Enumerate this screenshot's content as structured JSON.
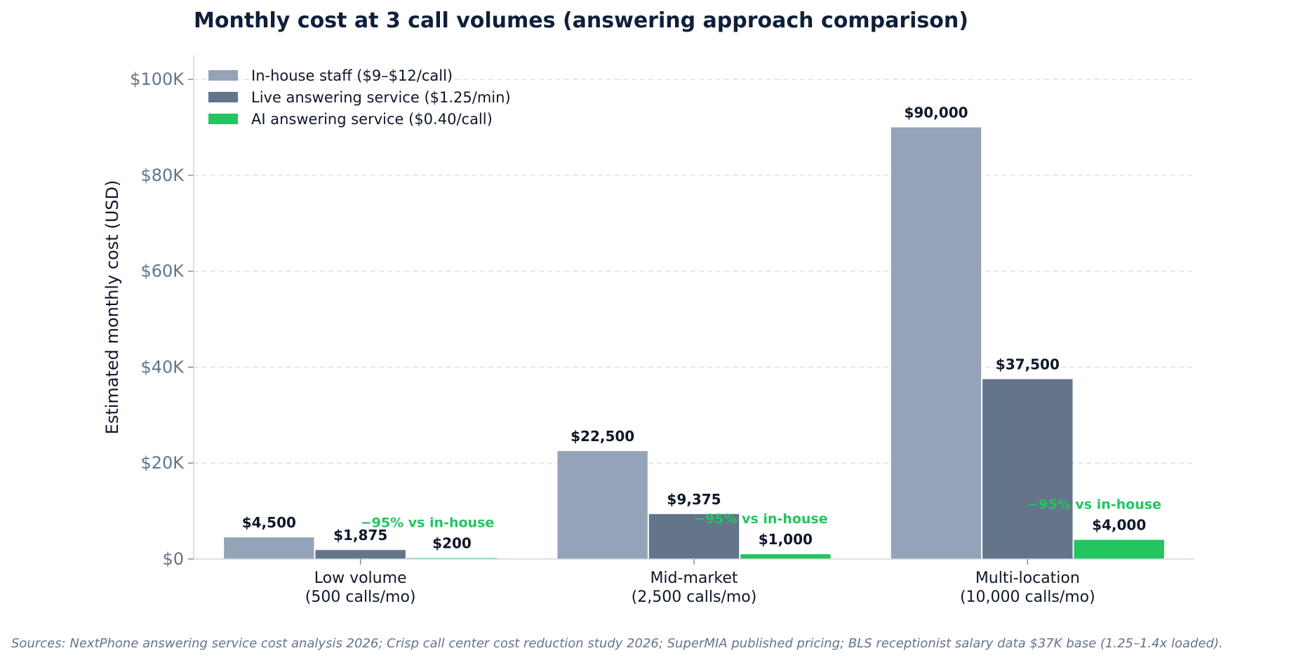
{
  "chart_data": {
    "type": "bar",
    "title": "Monthly cost at 3 call volumes (answering approach comparison)",
    "ylabel": "Estimated monthly cost (USD)",
    "xlabel": "",
    "ylim": [
      0,
      105000
    ],
    "yticks": [
      0,
      20000,
      40000,
      60000,
      80000,
      100000
    ],
    "ytick_labels": [
      "$0",
      "$20K",
      "$40K",
      "$60K",
      "$80K",
      "$100K"
    ],
    "grid": "horizontal dashed",
    "legend_position": "top-left",
    "categories": [
      [
        "Low volume",
        "(500 calls/mo)"
      ],
      [
        "Mid-market",
        "(2,500 calls/mo)"
      ],
      [
        "Multi-location",
        "(10,000 calls/mo)"
      ]
    ],
    "series": [
      {
        "name": "In-house staff ($9–$12/call)",
        "color": "#94a3b8",
        "values": [
          4500,
          22500,
          90000
        ],
        "labels": [
          "$4,500",
          "$22,500",
          "$90,000"
        ]
      },
      {
        "name": "Live answering service ($1.25/min)",
        "color": "#64748b",
        "values": [
          1875,
          9375,
          37500
        ],
        "labels": [
          "$1,875",
          "$9,375",
          "$37,500"
        ]
      },
      {
        "name": "AI answering service ($0.40/call)",
        "color": "#22c55e",
        "values": [
          200,
          1000,
          4000
        ],
        "labels": [
          "$200",
          "$1,000",
          "$4,000"
        ]
      }
    ],
    "annotations": [
      {
        "category": 0,
        "text": "−95% vs in-house",
        "color": "#22c55e"
      },
      {
        "category": 1,
        "text": "−95% vs in-house",
        "color": "#22c55e"
      },
      {
        "category": 2,
        "text": "−95% vs in-house",
        "color": "#22c55e"
      }
    ]
  },
  "source_note": "Sources: NextPhone answering service cost analysis 2026; Crisp call center cost reduction study 2026; SuperMIA published pricing; BLS receptionist salary data $37K base (1.25–1.4x loaded)."
}
